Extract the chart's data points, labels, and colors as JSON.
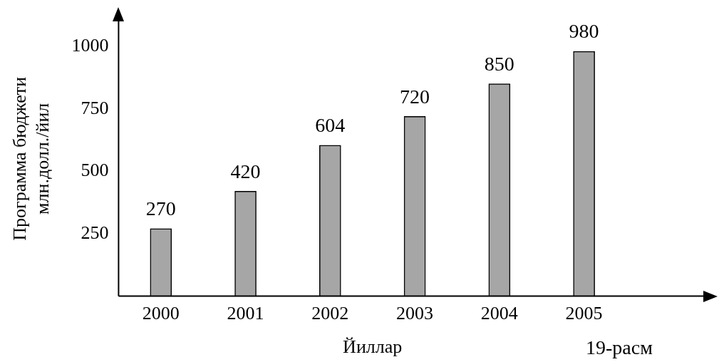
{
  "chart_data": {
    "type": "bar",
    "xlabel": "Йиллар",
    "ylabel": "Программа бюджети\nмлн.долл./йил",
    "annotations": [
      "19-расм"
    ],
    "categories": [
      "2000",
      "2001",
      "2002",
      "2003",
      "2004",
      "2005"
    ],
    "values": [
      270,
      420,
      604,
      720,
      850,
      980
    ],
    "color": "#a6a6a6",
    "ylim": [
      0,
      1100
    ],
    "yticks": [
      250,
      500,
      750,
      1000
    ],
    "data_labels": true,
    "grid": false,
    "legend": false
  }
}
